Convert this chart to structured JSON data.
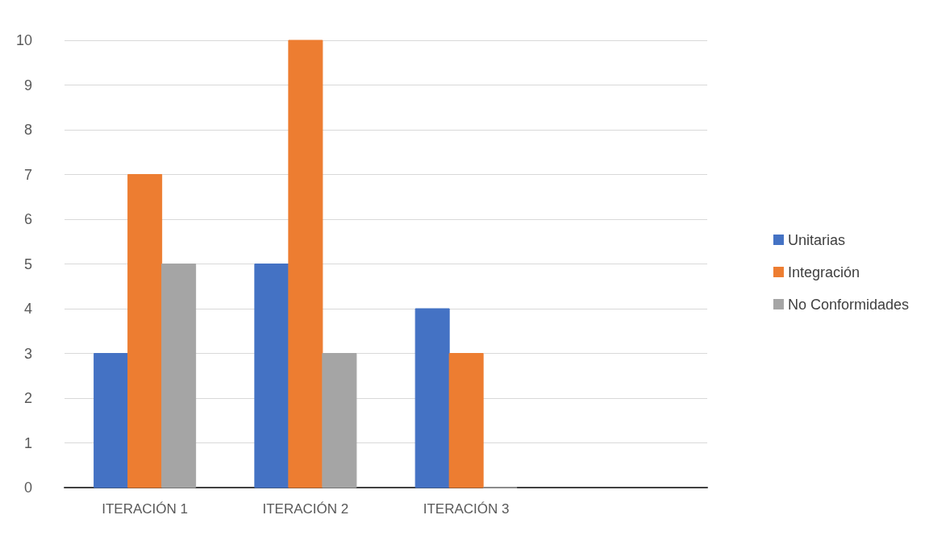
{
  "chart_data": {
    "type": "bar",
    "categories": [
      "ITERACIÓN 1",
      "ITERACIÓN 2",
      "ITERACIÓN 3",
      null
    ],
    "series": [
      {
        "name": "Unitarias",
        "color": "#4472c4",
        "values": [
          3,
          5,
          4,
          null
        ]
      },
      {
        "name": "Integración",
        "color": "#ed7d31",
        "values": [
          7,
          10,
          3,
          null
        ]
      },
      {
        "name": "No Conformidades",
        "color": "#a5a5a5",
        "values": [
          5,
          3,
          0,
          null
        ]
      }
    ],
    "ylim": [
      0,
      10
    ],
    "yticks": [
      0,
      1,
      2,
      3,
      4,
      5,
      6,
      7,
      8,
      9,
      10
    ],
    "grid": "y",
    "legend": "right"
  }
}
